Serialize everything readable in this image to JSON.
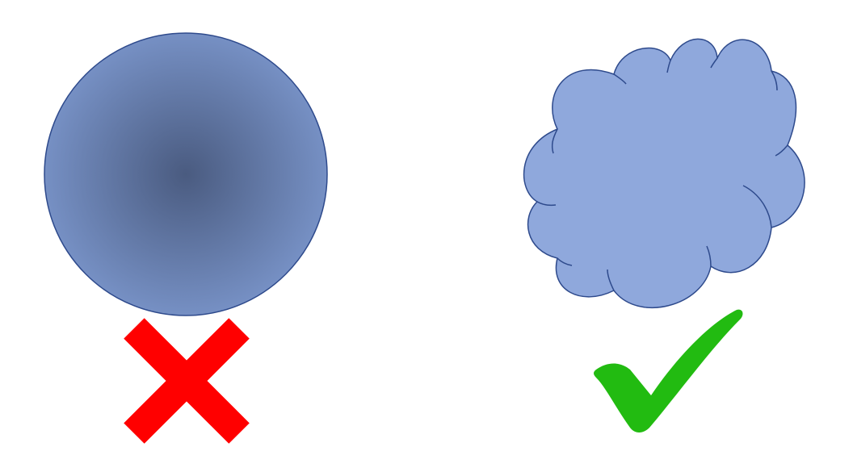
{
  "diagram": {
    "left_item": {
      "shape": "sphere",
      "verdict": "incorrect",
      "mark_icon": "cross-mark-icon"
    },
    "right_item": {
      "shape": "cloud",
      "verdict": "correct",
      "mark_icon": "check-mark-icon"
    }
  },
  "colors": {
    "sphere_center": "#4a5b80",
    "sphere_edge": "#7690c4",
    "outline": "#2e4a8c",
    "cloud_fill": "#8fa8dc",
    "cross_red": "#ff0000",
    "check_green": "#22bb11"
  }
}
